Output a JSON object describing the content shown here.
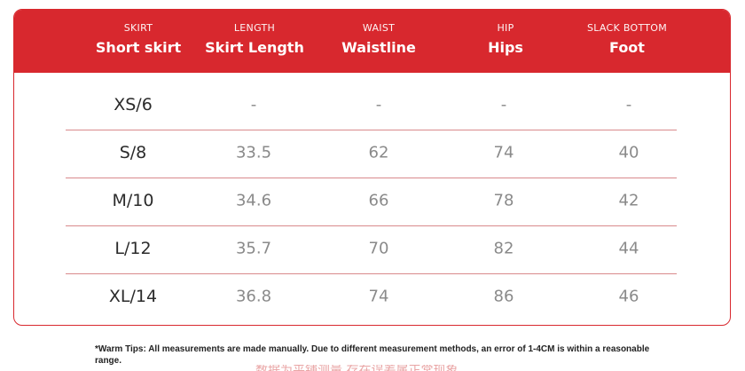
{
  "header": {
    "columns": [
      {
        "sub": "SKIRT",
        "main": "Short skirt"
      },
      {
        "sub": "LENGTH",
        "main": "Skirt Length"
      },
      {
        "sub": "WAIST",
        "main": "Waistline"
      },
      {
        "sub": "HIP",
        "main": "Hips"
      },
      {
        "sub": "SLACK BOTTOM",
        "main": "Foot"
      }
    ]
  },
  "rows": [
    {
      "size": "XS/6",
      "cells": [
        "-",
        "-",
        "-",
        "-"
      ]
    },
    {
      "size": "S/8",
      "cells": [
        "33.5",
        "62",
        "74",
        "40"
      ]
    },
    {
      "size": "M/10",
      "cells": [
        "34.6",
        "66",
        "78",
        "42"
      ]
    },
    {
      "size": "L/12",
      "cells": [
        "35.7",
        "70",
        "82",
        "44"
      ]
    },
    {
      "size": "XL/14",
      "cells": [
        "36.8",
        "74",
        "86",
        "46"
      ]
    }
  ],
  "tips": "*Warm Tips: All measurements are made manually. Due to different measurement methods, an error of 1-4CM is within a reasonable range.",
  "bottom_text": "数据为平铺测量 存在误差属正常现象",
  "colors": {
    "accent": "#d8282e",
    "divider": "#d98a8c",
    "value": "#8a8a8a"
  }
}
